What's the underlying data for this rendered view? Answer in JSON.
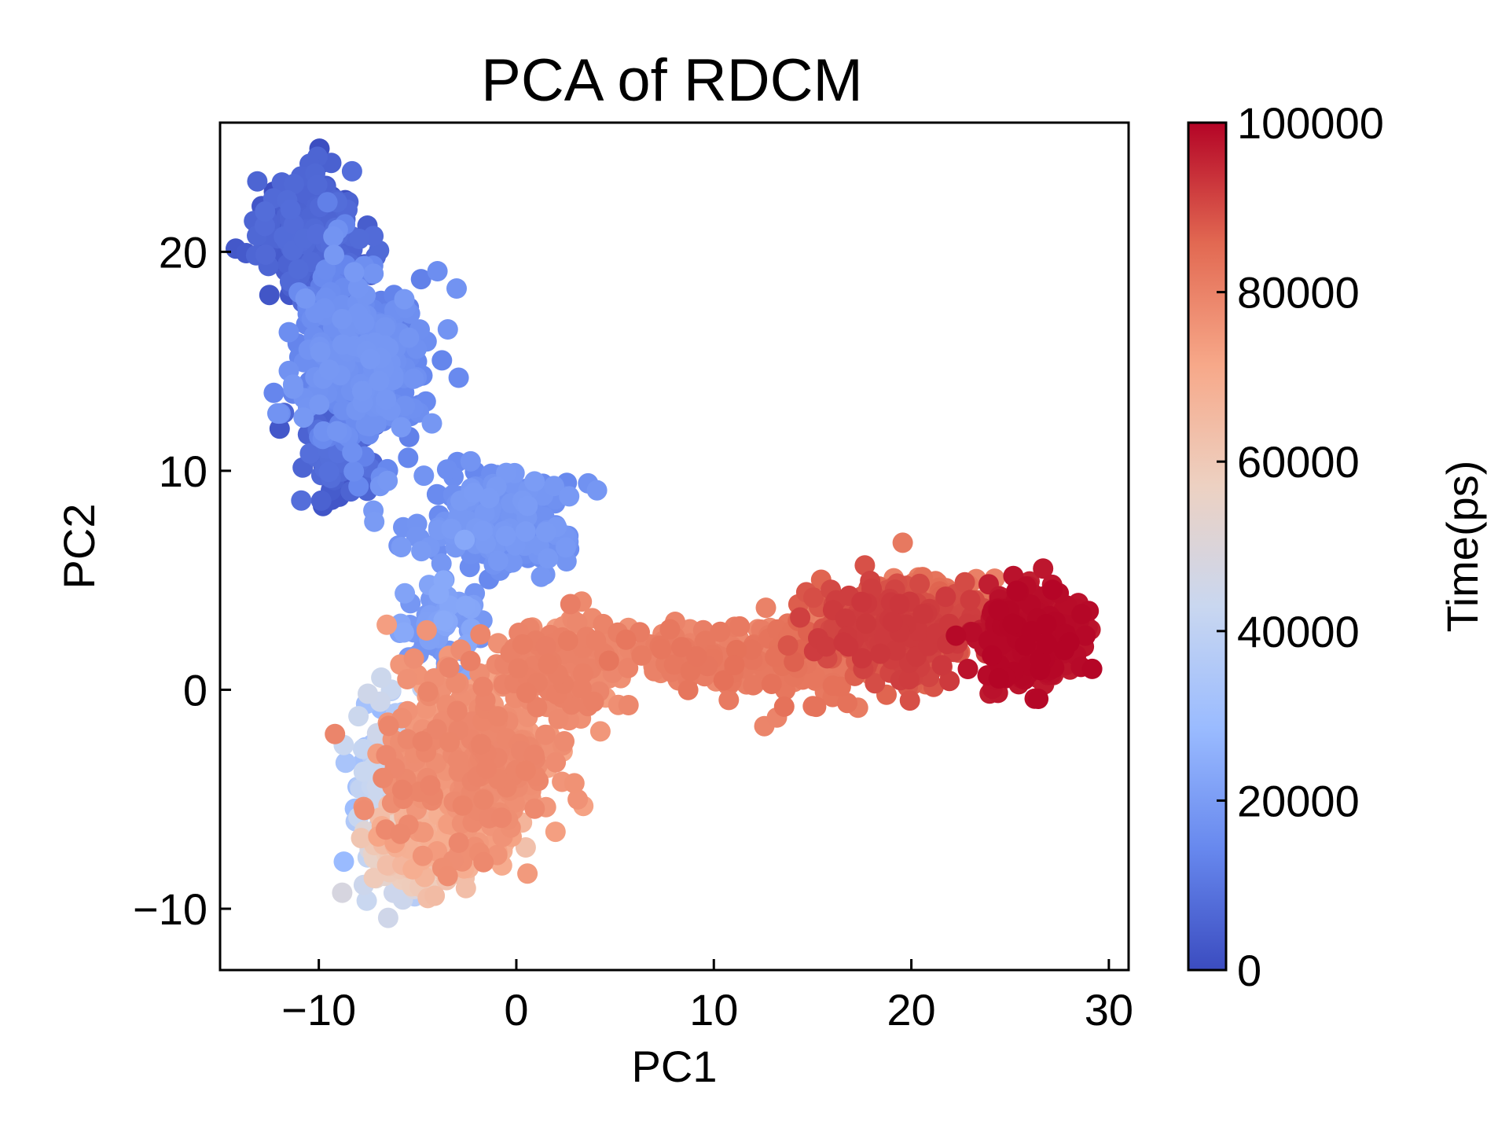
{
  "chart_data": {
    "type": "scatter",
    "title": "PCA of RDCM",
    "xlabel": "PC1",
    "ylabel": "PC2",
    "xlim": [
      -15,
      31
    ],
    "ylim": [
      -12.8,
      25.9
    ],
    "xticks": [
      -10,
      0,
      10,
      20,
      30
    ],
    "xtick_labels": [
      "−10",
      "0",
      "10",
      "20",
      "30"
    ],
    "yticks": [
      -10,
      0,
      10,
      20
    ],
    "ytick_labels": [
      "−10",
      "0",
      "10",
      "20"
    ],
    "grid": false,
    "colormap": "coolwarm",
    "colormap_stops": [
      "#3b4cc0",
      "#6788ee",
      "#9abbff",
      "#c9d7f0",
      "#edd1c2",
      "#f7a889",
      "#e26952",
      "#b40426"
    ],
    "colorbar": {
      "label": "Time(ps)",
      "range": [
        0,
        100000
      ],
      "ticks": [
        0,
        20000,
        40000,
        60000,
        80000,
        100000
      ],
      "tick_labels": [
        "0",
        "20000",
        "40000",
        "60000",
        "80000",
        "100000"
      ]
    },
    "clusters": [
      {
        "name": "",
        "x_center": -10.5,
        "y_center": 21.0,
        "x_spread": 1.6,
        "y_spread": 1.6,
        "t_range": [
          0,
          8000
        ],
        "count": 260
      },
      {
        "name": "",
        "x_center": -9.0,
        "y_center": 11.0,
        "x_spread": 1.2,
        "y_spread": 1.4,
        "t_range": [
          2000,
          9000
        ],
        "count": 90
      },
      {
        "name": "",
        "x_center": -8.0,
        "y_center": 15.0,
        "x_spread": 2.0,
        "y_spread": 2.6,
        "t_range": [
          12000,
          19000
        ],
        "count": 380
      },
      {
        "name": "",
        "x_center": -1.0,
        "y_center": 8.0,
        "x_spread": 2.8,
        "y_spread": 1.4,
        "t_range": [
          14000,
          20000
        ],
        "count": 220
      },
      {
        "name": "",
        "x_center": -3.5,
        "y_center": 3.0,
        "x_spread": 1.3,
        "y_spread": 1.5,
        "t_range": [
          17000,
          24000
        ],
        "count": 70
      },
      {
        "name": "",
        "x_center": -6.5,
        "y_center": -4.5,
        "x_spread": 1.2,
        "y_spread": 2.4,
        "t_range": [
          28000,
          45000
        ],
        "count": 140
      },
      {
        "name": "",
        "x_center": -5.5,
        "y_center": -7.5,
        "x_spread": 1.4,
        "y_spread": 1.2,
        "t_range": [
          44000,
          62000
        ],
        "count": 110
      },
      {
        "name": "",
        "x_center": -3.5,
        "y_center": -6.5,
        "x_spread": 2.0,
        "y_spread": 1.3,
        "t_range": [
          62000,
          70000
        ],
        "count": 160
      },
      {
        "name": "",
        "x_center": -2.0,
        "y_center": -3.0,
        "x_spread": 2.8,
        "y_spread": 2.6,
        "t_range": [
          72000,
          80000
        ],
        "count": 450
      },
      {
        "name": "",
        "x_center": 2.0,
        "y_center": 1.0,
        "x_spread": 2.2,
        "y_spread": 1.2,
        "t_range": [
          76000,
          81000
        ],
        "count": 150
      },
      {
        "name": "",
        "x_center": 9.5,
        "y_center": 1.5,
        "x_spread": 3.0,
        "y_spread": 1.0,
        "t_range": [
          78000,
          83000
        ],
        "count": 140
      },
      {
        "name": "",
        "x_center": 14.5,
        "y_center": 1.5,
        "x_spread": 2.0,
        "y_spread": 1.3,
        "t_range": [
          79000,
          84000
        ],
        "count": 160
      },
      {
        "name": "",
        "x_center": 19.5,
        "y_center": 2.8,
        "x_spread": 2.6,
        "y_spread": 1.2,
        "t_range": [
          86000,
          93000
        ],
        "count": 420
      },
      {
        "name": "",
        "x_center": 21.5,
        "y_center": 4.0,
        "x_spread": 1.6,
        "y_spread": 1.0,
        "t_range": [
          80000,
          86000
        ],
        "count": 80
      },
      {
        "name": "",
        "x_center": 26.0,
        "y_center": 2.4,
        "x_spread": 1.5,
        "y_spread": 1.2,
        "t_range": [
          96000,
          100000
        ],
        "count": 380
      }
    ]
  }
}
